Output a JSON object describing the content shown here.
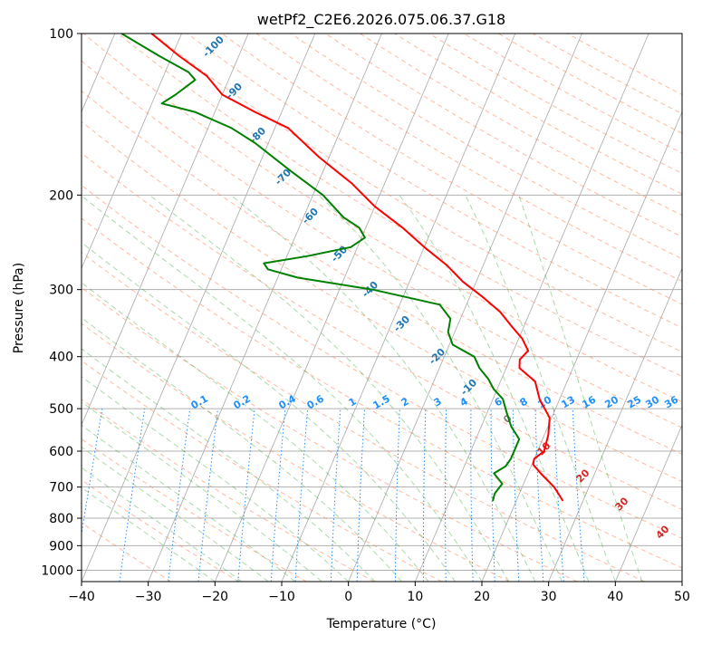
{
  "chart_data": {
    "type": "line",
    "title": "wetPf2_C2E6.2026.075.06.37.G18",
    "xlabel": "Temperature (°C)",
    "ylabel": "Pressure (hPa)",
    "xlim": [
      -40,
      50
    ],
    "ylim": [
      1050,
      100
    ],
    "y_scale": "log",
    "skew": 35,
    "x_ticks": [
      -40,
      -30,
      -20,
      -10,
      0,
      10,
      20,
      30,
      40,
      50
    ],
    "x_tick_labels": [
      "−40",
      "−30",
      "−20",
      "−10",
      "0",
      "10",
      "20",
      "30",
      "40",
      "50"
    ],
    "y_ticks": [
      1000,
      900,
      800,
      700,
      600,
      500,
      400,
      300,
      200,
      100
    ],
    "y_tick_labels": [
      "1000",
      "900",
      "800",
      "700",
      "600",
      "500",
      "400",
      "300",
      "200",
      "100"
    ],
    "grid": true,
    "series": [
      {
        "name": "",
        "color": "#ff0000",
        "p": [
          743,
          700,
          660,
          635,
          620,
          600,
          560,
          520,
          480,
          445,
          420,
          405,
          390,
          370,
          350,
          330,
          310,
          290,
          270,
          250,
          230,
          210,
          190,
          170,
          150,
          140,
          130,
          120,
          110,
          100
        ],
        "t": [
          27.0,
          24.8,
          21.9,
          20.2,
          20.0,
          21.0,
          20.6,
          19.7,
          17.0,
          15.2,
          12.0,
          11.5,
          12.2,
          10.5,
          8.0,
          5.5,
          2.0,
          -2.0,
          -5.5,
          -10.0,
          -14.5,
          -20.0,
          -25.0,
          -31.5,
          -38.0,
          -44.0,
          -50.0,
          -53.5,
          -59.0,
          -64.5
        ]
      },
      {
        "name": "",
        "color": "#008000",
        "p": [
          743,
          720,
          690,
          660,
          640,
          620,
          600,
          570,
          540,
          510,
          480,
          460,
          440,
          420,
          400,
          380,
          360,
          340,
          320,
          300,
          285,
          275,
          268,
          260,
          250,
          240,
          230,
          220,
          200,
          180,
          160,
          150,
          140,
          135,
          130,
          122,
          118,
          110,
          100
        ],
        "t": [
          16.5,
          16.3,
          16.8,
          14.9,
          16.2,
          16.5,
          16.5,
          16.5,
          14.5,
          13.0,
          11.5,
          9.5,
          8.0,
          6.0,
          4.5,
          0.5,
          -1.0,
          -1.5,
          -4.0,
          -15.0,
          -27.0,
          -32.0,
          -33.0,
          -27.0,
          -21.0,
          -19.5,
          -21.0,
          -24.0,
          -28.5,
          -35.0,
          -42.0,
          -46.5,
          -53.0,
          -58.5,
          -57.0,
          -55.0,
          -56.5,
          -62.0,
          -69.0
        ]
      }
    ],
    "mixing_ratio_labels": [
      "0.1",
      "0.2",
      "0.4",
      "0.6",
      "1",
      "1.5",
      "2",
      "3",
      "4",
      "6",
      "8",
      "10",
      "13",
      "16",
      "20",
      "25",
      "30",
      "36"
    ],
    "dry_adiabat_labels": [
      "10",
      "20",
      "30",
      "40"
    ],
    "moist_adiabat_labels": [
      "-100",
      "-90",
      "-80",
      "-70",
      "-60",
      "-50",
      "-40",
      "-30",
      "-20",
      "-10",
      "0"
    ],
    "colors": {
      "temperature": "#ff0000",
      "dewpoint": "#008000",
      "isotherm": "#a9a9a9",
      "dry_adiabat": "#ff7f50",
      "moist_adiabat": "#2ca02c",
      "mixing_ratio": "#1e90ff"
    }
  }
}
